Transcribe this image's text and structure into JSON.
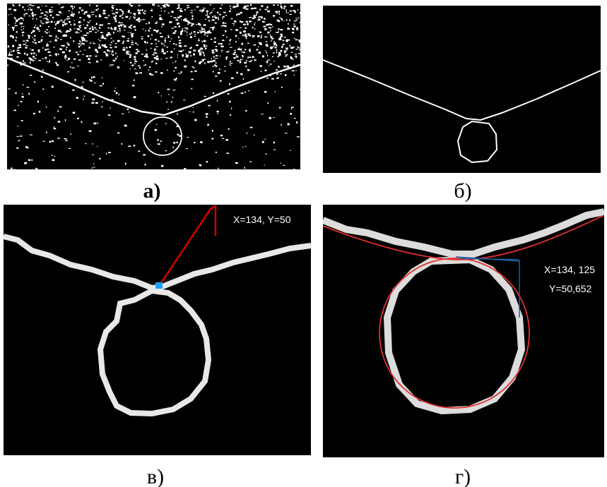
{
  "panels": [
    {
      "caption": "а)"
    },
    {
      "caption": "б)"
    },
    {
      "caption": "в)",
      "annotation": "X=134, Y=50"
    },
    {
      "caption": "г)",
      "annotations": [
        "X=134, 125",
        "Y=50,652"
      ]
    }
  ]
}
